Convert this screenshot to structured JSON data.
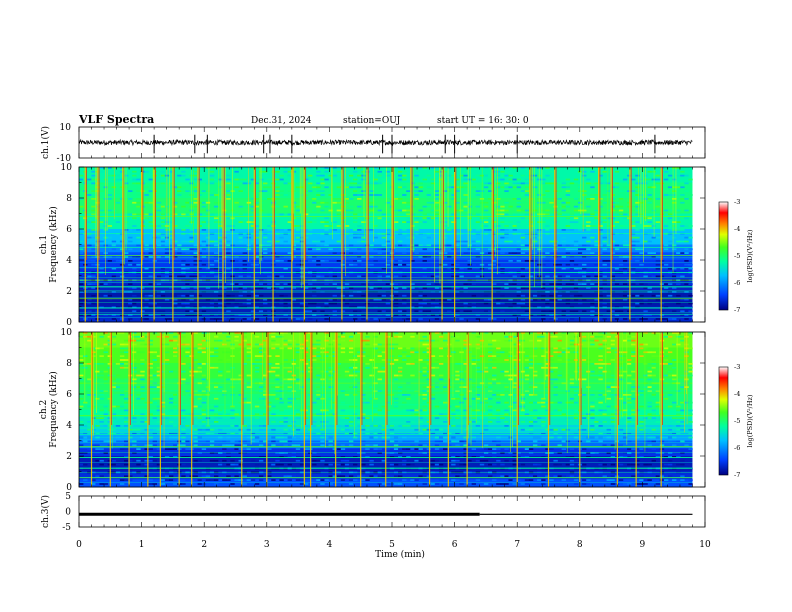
{
  "header": {
    "title": "VLF Spectra",
    "date": "Dec.31, 2024",
    "station": "station=OUJ",
    "start": "start  UT =   16: 30: 0"
  },
  "colorbar": {
    "label": "log(PSD)(V²/Hz)",
    "ticks": [
      "-3",
      "-4",
      "-5",
      "-6",
      "-7"
    ]
  },
  "colors": {
    "cmap": [
      "#1010b0",
      "#1e3fe8",
      "#10a8f0",
      "#20d0c8",
      "#38e080",
      "#70e040",
      "#c8e020",
      "#f0a020",
      "#e03020",
      "#c00030"
    ],
    "trace": "#000000"
  },
  "chart_data": [
    {
      "id": "ch1-waveform",
      "type": "line",
      "ylabel": "ch.1(V)",
      "ylim": [
        -10,
        10
      ],
      "y_ticks": [
        "10",
        "-10"
      ],
      "xlim": [
        0,
        10
      ],
      "baseline": 0,
      "spikes_min": [
        1.2,
        1.85,
        2.05,
        2.95,
        3.05,
        3.4,
        4.85,
        5.0,
        5.85,
        6.0,
        7.0,
        9.2
      ]
    },
    {
      "id": "ch1-spectrogram",
      "type": "heatmap",
      "ylabel": "ch.1\nFrequency (kHz)",
      "xlim": [
        0,
        10
      ],
      "ylim": [
        0,
        10
      ],
      "y_ticks": [
        "0",
        "2",
        "4",
        "6",
        "8",
        "10"
      ],
      "clim": [
        -7,
        -3
      ],
      "data_end_min": 9.8,
      "rows_khz": [
        10,
        9,
        8,
        7,
        6,
        5,
        4.5,
        4,
        3.5,
        3,
        2.5,
        2,
        1.5,
        1,
        0.5,
        0
      ],
      "row_levels": [
        -5.3,
        -5.2,
        -5.0,
        -5.0,
        -5.5,
        -5.9,
        -6.2,
        -6.5,
        -6.5,
        -6.6,
        -6.6,
        -6.8,
        -6.8,
        -6.8,
        -6.7,
        -6.6
      ],
      "tone_lines_khz": [
        6.8,
        5.7,
        4.8,
        4.3,
        3.5,
        3.2,
        2.7,
        2.3,
        2.0,
        1.5,
        0.9,
        0.5
      ],
      "bursts_min": [
        0.1,
        0.3,
        0.7,
        1.0,
        1.2,
        1.5,
        1.9,
        2.3,
        2.8,
        3.1,
        3.4,
        3.6,
        4.2,
        4.6,
        5.0,
        5.3,
        5.8,
        6.0,
        6.6,
        7.2,
        7.6,
        8.3,
        8.5,
        8.8,
        9.3
      ]
    },
    {
      "id": "ch2-spectrogram",
      "type": "heatmap",
      "ylabel": "ch.2\nFrequency (kHz)",
      "xlim": [
        0,
        10
      ],
      "ylim": [
        0,
        10
      ],
      "y_ticks": [
        "0",
        "2",
        "4",
        "6",
        "8",
        "10"
      ],
      "clim": [
        -7,
        -3
      ],
      "data_end_min": 9.8,
      "rows_khz": [
        10,
        9,
        8,
        7,
        6,
        5,
        4.5,
        4,
        3.5,
        3,
        2.5,
        2,
        1.5,
        1,
        0.5,
        0
      ],
      "row_levels": [
        -4.5,
        -4.6,
        -4.7,
        -4.9,
        -5.0,
        -5.1,
        -5.3,
        -5.4,
        -5.7,
        -6.0,
        -6.4,
        -6.7,
        -6.8,
        -6.7,
        -6.5,
        -6.2
      ],
      "tone_lines_khz": [
        6.7,
        6.2,
        5.3,
        4.6,
        3.8,
        3.4,
        2.6,
        1.9,
        1.2,
        0.6
      ],
      "bursts_min": [
        0.2,
        0.5,
        0.8,
        1.1,
        1.3,
        1.6,
        1.8,
        2.6,
        3.0,
        3.6,
        3.7,
        4.1,
        4.5,
        4.9,
        5.6,
        5.9,
        6.2,
        7.0,
        7.5,
        8.0,
        8.6,
        8.9,
        9.3
      ]
    },
    {
      "id": "ch3-waveform",
      "type": "line",
      "ylabel": "ch.3(V)",
      "ylim": [
        -5,
        5
      ],
      "y_ticks": [
        "5",
        "0",
        "-5"
      ],
      "xlim": [
        0,
        10
      ],
      "segments": [
        {
          "x": [
            0,
            6.4
          ],
          "y": -0.9,
          "weight": "thick"
        },
        {
          "x": [
            6.4,
            9.8
          ],
          "y": -0.9,
          "weight": "thin"
        }
      ]
    }
  ],
  "x_axis": {
    "label": "Time (min)",
    "ticks": [
      "0",
      "1",
      "2",
      "3",
      "4",
      "5",
      "6",
      "7",
      "8",
      "9",
      "10"
    ]
  }
}
